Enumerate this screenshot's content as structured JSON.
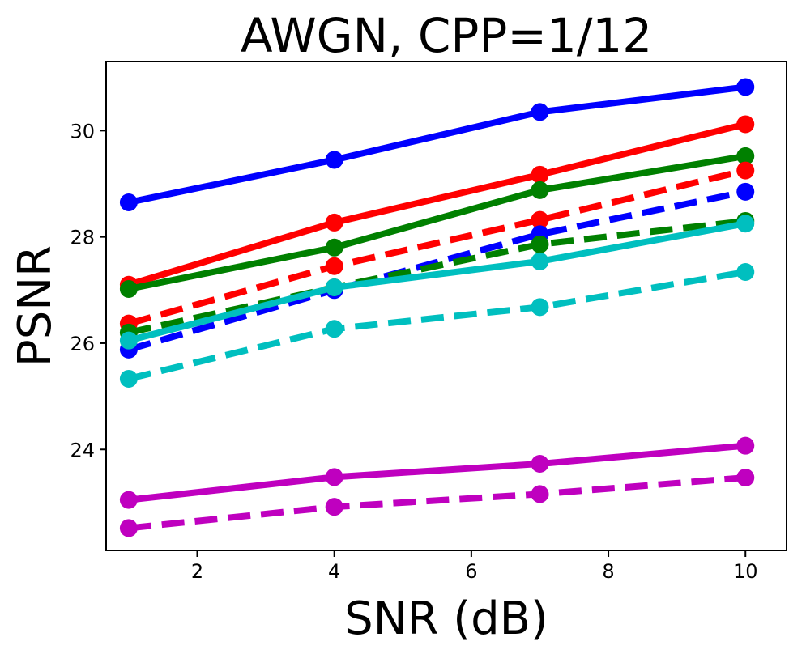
{
  "chart_data": {
    "type": "line",
    "title": "AWGN, CPP=1/12",
    "xlabel": "SNR (dB)",
    "ylabel": "PSNR",
    "xlim": [
      0.67,
      10.6
    ],
    "ylim": [
      22.1,
      31.3
    ],
    "xticks": [
      2,
      4,
      6,
      8,
      10
    ],
    "yticks": [
      24,
      26,
      28,
      30
    ],
    "xtick_labels": [
      "2",
      "4",
      "6",
      "8",
      "10"
    ],
    "ytick_labels": [
      "24",
      "26",
      "28",
      "30"
    ],
    "grid": false,
    "legend": "none",
    "x": [
      1,
      4,
      7,
      10
    ],
    "series": [
      {
        "name": "blue-solid",
        "color": "#0000ff",
        "style": "solid",
        "values": [
          28.65,
          29.45,
          30.35,
          30.82
        ]
      },
      {
        "name": "red-solid",
        "color": "#ff0000",
        "style": "solid",
        "values": [
          27.1,
          28.27,
          29.17,
          30.12
        ]
      },
      {
        "name": "green-solid",
        "color": "#008000",
        "style": "solid",
        "values": [
          27.02,
          27.8,
          28.88,
          29.52
        ]
      },
      {
        "name": "red-dashed",
        "color": "#ff0000",
        "style": "dashed",
        "values": [
          26.37,
          27.45,
          28.32,
          29.25
        ]
      },
      {
        "name": "blue-dashed",
        "color": "#0000ff",
        "style": "dashed",
        "values": [
          25.88,
          27.0,
          28.05,
          28.85
        ]
      },
      {
        "name": "green-dashed",
        "color": "#008000",
        "style": "dashed",
        "values": [
          26.2,
          27.05,
          27.86,
          28.3
        ]
      },
      {
        "name": "cyan-solid",
        "color": "#00bfbf",
        "style": "solid",
        "values": [
          26.05,
          27.05,
          27.54,
          28.25
        ]
      },
      {
        "name": "cyan-dashed",
        "color": "#00bfbf",
        "style": "dashed",
        "values": [
          25.33,
          26.27,
          26.68,
          27.34
        ]
      },
      {
        "name": "magenta-solid",
        "color": "#bf00bf",
        "style": "solid",
        "values": [
          23.05,
          23.48,
          23.73,
          24.07
        ]
      },
      {
        "name": "magenta-dashed",
        "color": "#bf00bf",
        "style": "dashed",
        "values": [
          22.52,
          22.92,
          23.16,
          23.47
        ]
      }
    ]
  }
}
